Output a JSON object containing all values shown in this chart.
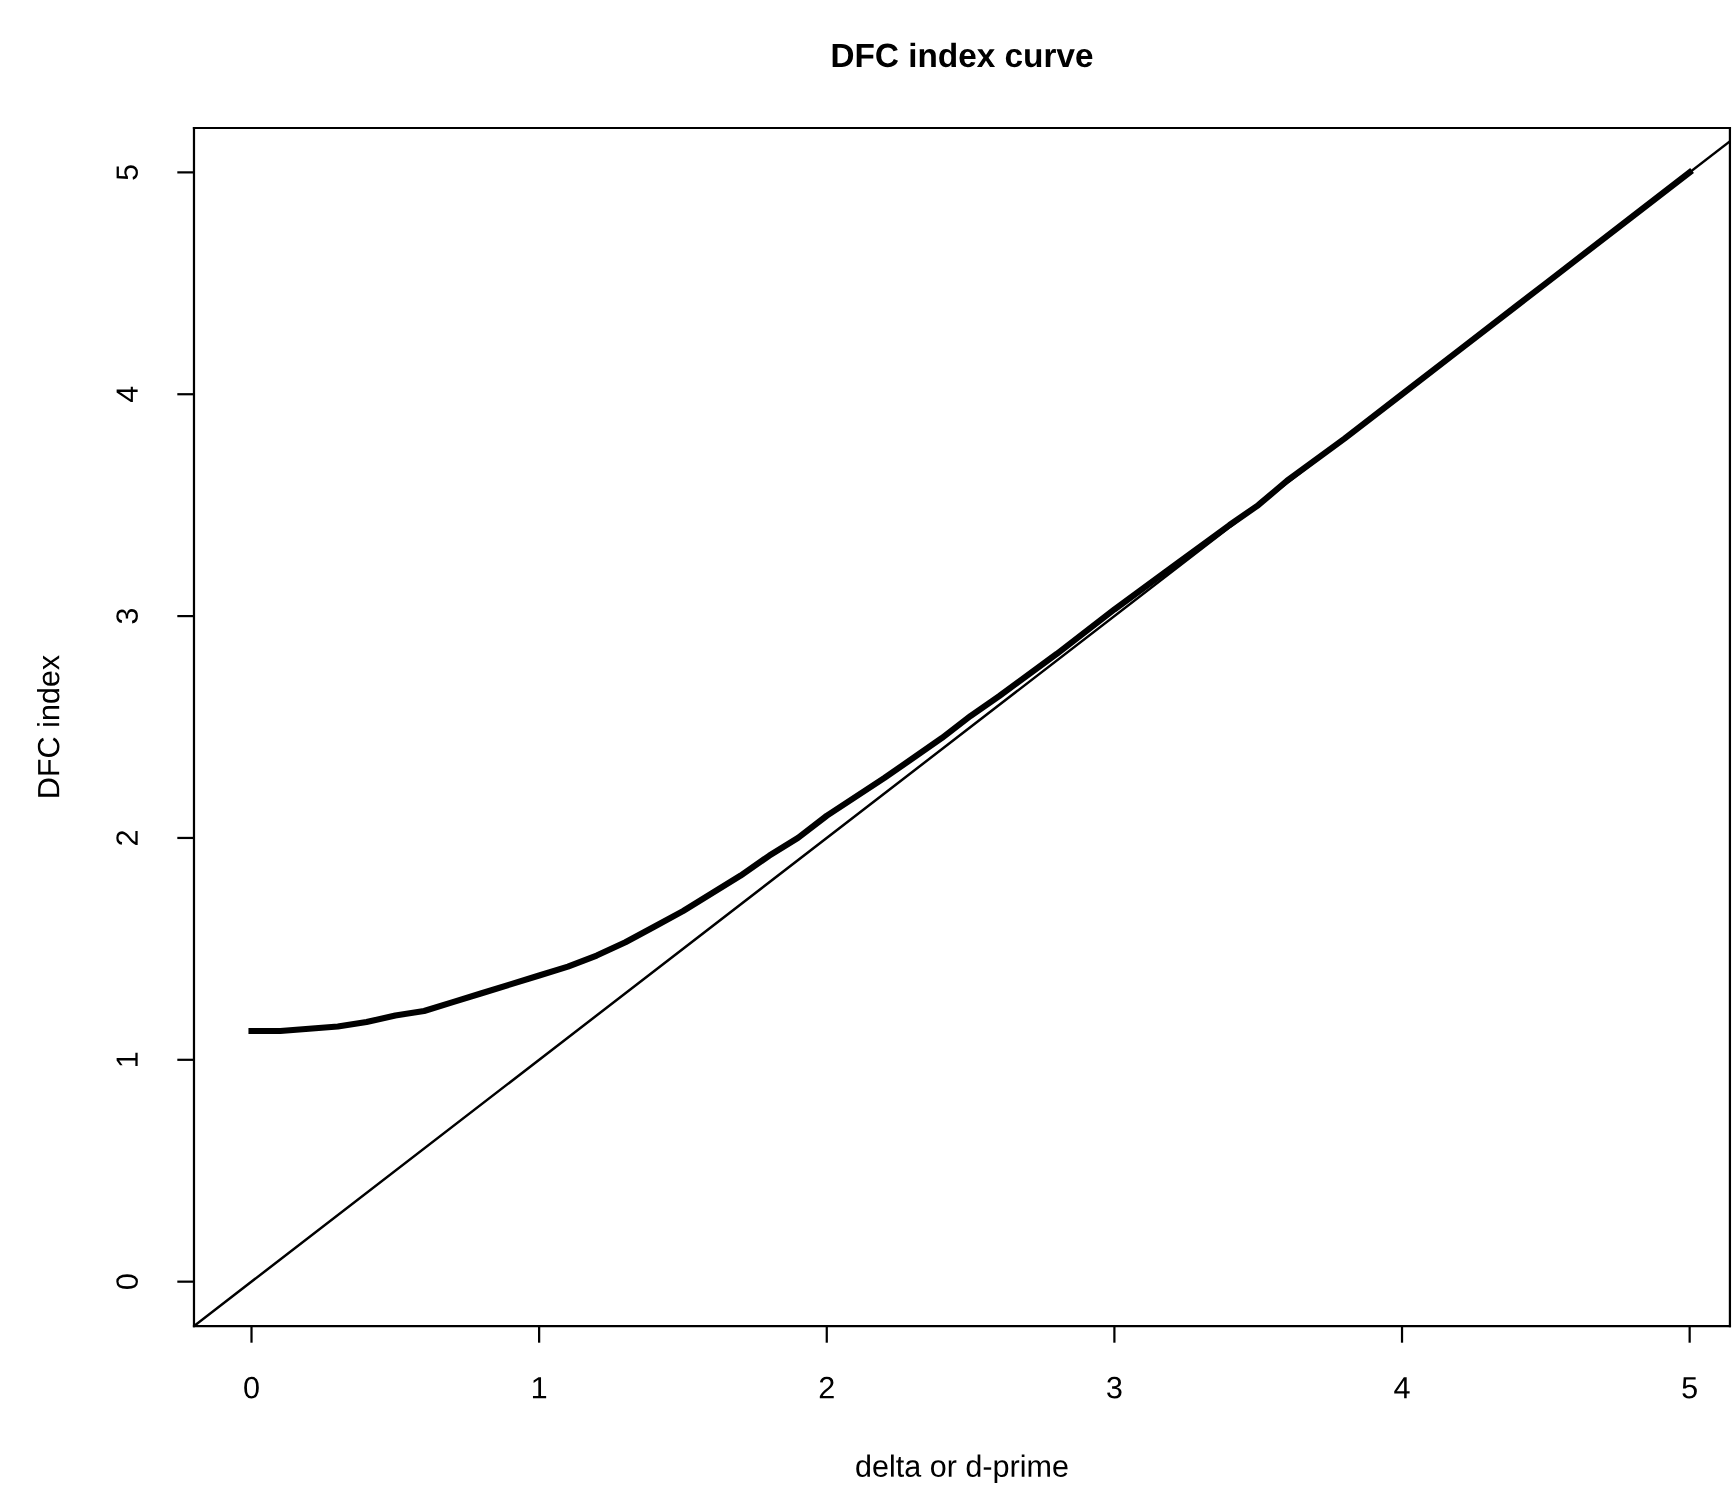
{
  "chart_data": {
    "type": "line",
    "title": "DFC index curve",
    "xlabel": "delta or d-prime",
    "ylabel": "DFC index",
    "series": [
      {
        "type": "line",
        "color": "#000000",
        "x": [
          0,
          0.1,
          0.2,
          0.3,
          0.4,
          0.5,
          0.6,
          0.7,
          0.8,
          0.9,
          1.0,
          1.1,
          1.2,
          1.3,
          1.4,
          1.5,
          1.6,
          1.7,
          1.8,
          1.9,
          2.0,
          2.2,
          2.4,
          2.5,
          2.6,
          2.8,
          3.0,
          3.2,
          3.4,
          3.5,
          3.6,
          3.8,
          4.0,
          4.2,
          4.4,
          4.5,
          4.6,
          4.8,
          5.0
        ],
        "values": [
          1.13,
          1.13,
          1.14,
          1.15,
          1.17,
          1.2,
          1.22,
          1.26,
          1.3,
          1.34,
          1.38,
          1.42,
          1.47,
          1.53,
          1.6,
          1.67,
          1.75,
          1.83,
          1.92,
          2.0,
          2.1,
          2.27,
          2.45,
          2.55,
          2.64,
          2.83,
          3.03,
          3.22,
          3.41,
          3.5,
          3.61,
          3.8,
          4.0,
          4.2,
          4.4,
          4.5,
          4.6,
          4.8,
          5.0
        ]
      },
      {
        "type": "line",
        "color": "#000000",
        "x": [
          -0.2,
          5.14
        ],
        "values": [
          -0.2,
          5.14
        ]
      }
    ],
    "xlim": [
      -0.2,
      5.14
    ],
    "ylim": [
      -0.2,
      5.2
    ],
    "xticks": [
      0,
      1,
      2,
      3,
      4,
      5
    ],
    "yticks": [
      0,
      1,
      2,
      3,
      4,
      5
    ],
    "grid": false,
    "legend": false,
    "marker": "none",
    "line_style": "solid"
  }
}
